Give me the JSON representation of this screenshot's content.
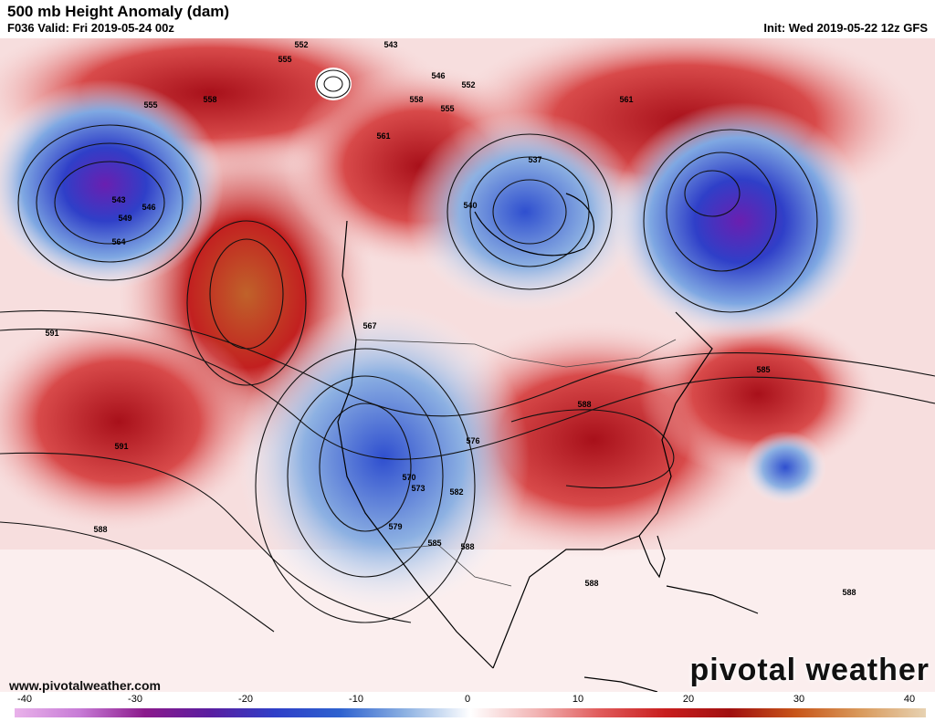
{
  "header": {
    "title": "500 mb Height Anomaly (dam)",
    "valid": "F036 Valid: Fri 2019-05-24 00z",
    "init": "Init: Wed 2019-05-22 12z GFS"
  },
  "footer": {
    "website": "www.pivotalweather.com",
    "brand": "pivotal weather"
  },
  "colorbar": {
    "ticks": [
      "-40",
      "-30",
      "-20",
      "-10",
      "0",
      "10",
      "20",
      "30",
      "40"
    ],
    "colors": [
      "#e9b2ea",
      "#c77bd6",
      "#8b1a8c",
      "#5a1ea0",
      "#2f3fc8",
      "#2e62cf",
      "#8db1e2",
      "#ffffff",
      "#f2b5b5",
      "#e05a5a",
      "#c81e1e",
      "#a01010",
      "#c8561a",
      "#d99a5c",
      "#e7d2b2"
    ]
  },
  "map": {
    "anomalies": [
      {
        "name": "Pacific low",
        "sign": "negative",
        "color": "#3a3fc0"
      },
      {
        "name": "Hudson Bay low",
        "sign": "negative",
        "color": "#2f4fcf"
      },
      {
        "name": "North Atlantic low",
        "sign": "negative",
        "color": "#3a2fb8"
      },
      {
        "name": "Southwest US trough",
        "sign": "negative",
        "color": "#2e55c9"
      },
      {
        "name": "Gulf of Alaska ridge",
        "sign": "positive",
        "color": "#c0622a"
      },
      {
        "name": "Eastern US ridge",
        "sign": "positive",
        "color": "#d0302a"
      },
      {
        "name": "Greenland ridge",
        "sign": "positive",
        "color": "#c81e1e"
      }
    ],
    "contour_labels": [
      "552",
      "555",
      "543",
      "546",
      "552",
      "555",
      "558",
      "561",
      "537",
      "540",
      "543",
      "546",
      "549",
      "555",
      "558",
      "561",
      "564",
      "567",
      "570",
      "573",
      "576",
      "579",
      "582",
      "585",
      "588",
      "591",
      "591",
      "588",
      "585",
      "588",
      "588",
      "588"
    ]
  }
}
